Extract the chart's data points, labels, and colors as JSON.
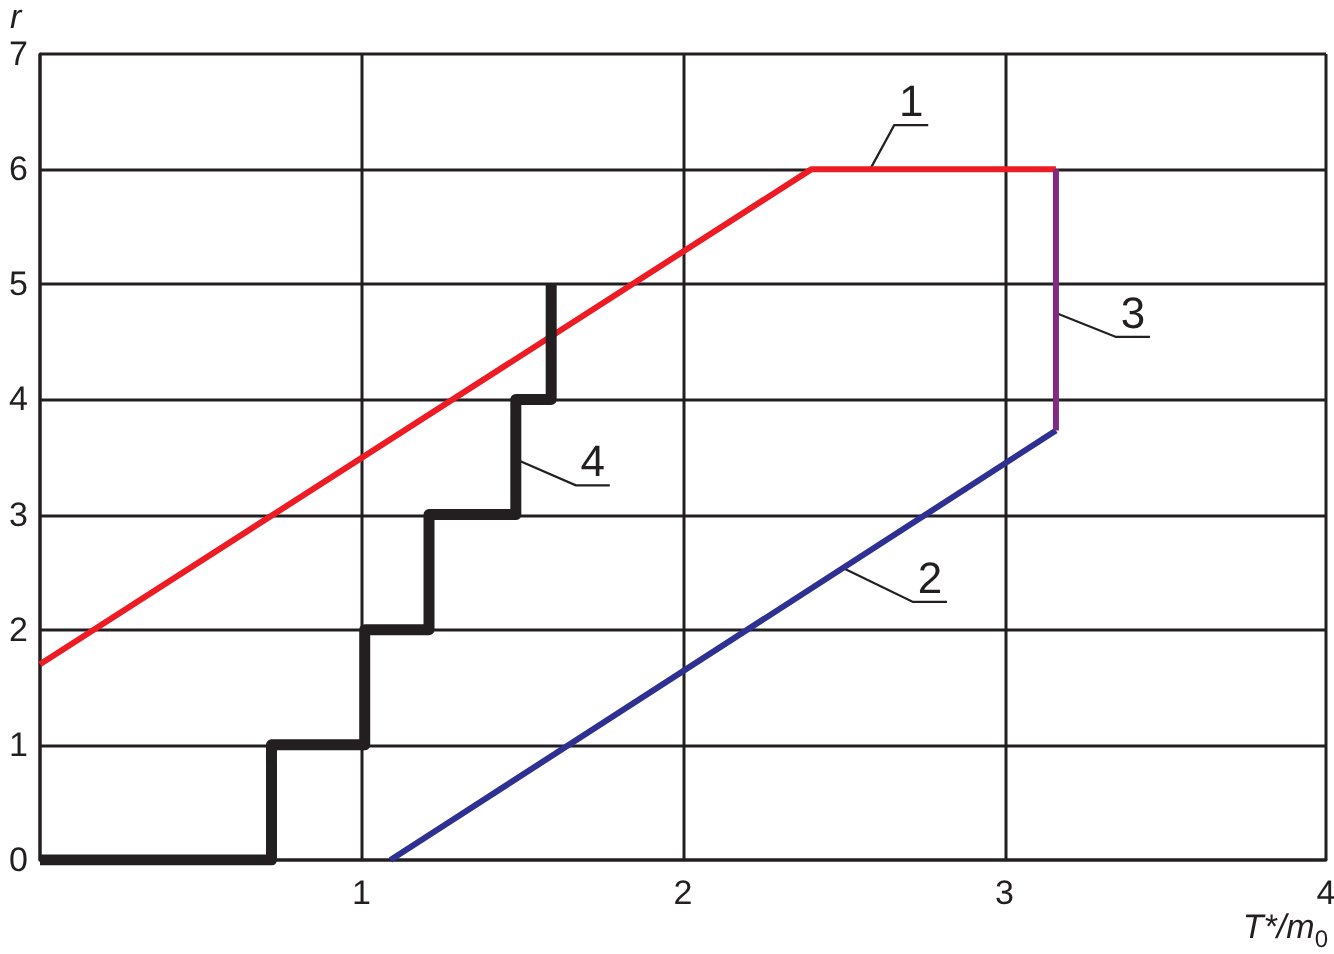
{
  "chart_data": {
    "type": "line",
    "xlabel": "T*/m$_{0}$",
    "ylabel": "r",
    "xlim": [
      0,
      4
    ],
    "ylim": [
      0,
      7
    ],
    "xticks": [
      {
        "value": 0,
        "label": null
      },
      1,
      2,
      3,
      4
    ],
    "yticks": [
      0,
      1,
      2,
      3,
      4,
      5,
      6,
      7
    ],
    "grid": true,
    "legend": false,
    "marker": "none",
    "line_style": "solid",
    "series": [
      {
        "name": "1",
        "color": "#ed1c24",
        "x": [
          0,
          2.4,
          3.16
        ],
        "values": [
          1.7,
          6,
          6
        ]
      },
      {
        "name": "2",
        "color": "#2e3192",
        "x": [
          1.09,
          3.16
        ],
        "values": [
          0,
          3.73
        ]
      },
      {
        "name": "3",
        "color": "#7f2a83",
        "x": [
          3.16,
          3.16
        ],
        "values": [
          6,
          3.73
        ]
      },
      {
        "name": "4",
        "color": "#231f20",
        "x": [
          0,
          0.72,
          0.72,
          1.01,
          1.01,
          1.21,
          1.21,
          1.48,
          1.48,
          1.59,
          1.59
        ],
        "values": [
          0,
          0,
          1,
          1,
          2,
          2,
          3,
          3,
          4,
          4,
          5
        ]
      }
    ]
  }
}
